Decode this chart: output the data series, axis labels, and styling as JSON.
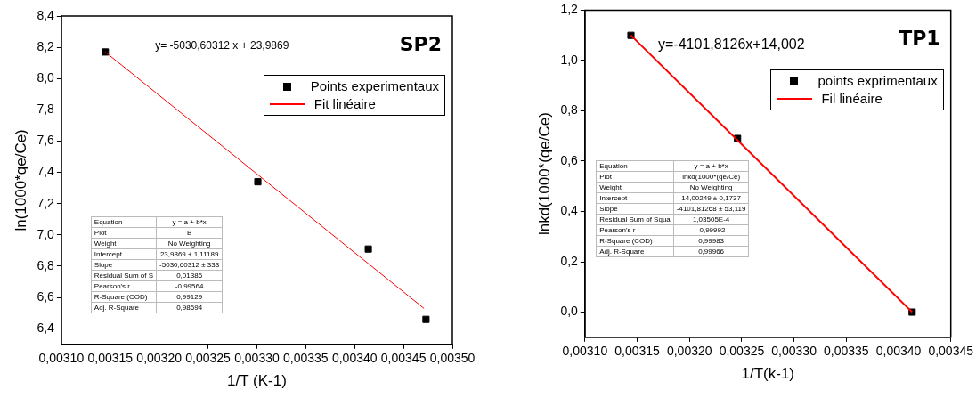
{
  "chart_data": [
    {
      "type": "scatter",
      "title": "SP2",
      "xlabel": "1/T (K-1)",
      "ylabel": "ln(1000*qe/Ce)",
      "legend": "top right",
      "grid": false,
      "xlim": [
        0.0031,
        0.0035
      ],
      "xticks": [
        {
          "value": 0.0031,
          "label": "0,00310"
        },
        {
          "value": 0.00315,
          "label": "0,00315"
        },
        {
          "value": 0.0032,
          "label": "0,00320"
        },
        {
          "value": 0.00325,
          "label": "0,00325"
        },
        {
          "value": 0.0033,
          "label": "0,00330"
        },
        {
          "value": 0.00335,
          "label": "0,00335"
        },
        {
          "value": 0.0034,
          "label": "0,00340"
        },
        {
          "value": 0.00345,
          "label": "0,00345"
        },
        {
          "value": 0.0035,
          "label": "0,00350"
        }
      ],
      "ylim": [
        6.3,
        8.4
      ],
      "yticks": [
        {
          "value": 6.4,
          "label": "6,4"
        },
        {
          "value": 6.6,
          "label": "6,6"
        },
        {
          "value": 6.8,
          "label": "6,8"
        },
        {
          "value": 7.0,
          "label": "7,0"
        },
        {
          "value": 7.2,
          "label": "7,2"
        },
        {
          "value": 7.4,
          "label": "7,4"
        },
        {
          "value": 7.6,
          "label": "7,6"
        },
        {
          "value": 7.8,
          "label": "7,8"
        },
        {
          "value": 8.0,
          "label": "8,0"
        },
        {
          "value": 8.2,
          "label": "8,2"
        },
        {
          "value": 8.4,
          "label": "8,4"
        }
      ],
      "series": [
        {
          "name": "Points experimentaux",
          "marker": "square",
          "color": "#000000",
          "x": [
            0.003145,
            0.003301,
            0.003414,
            0.003473
          ],
          "values": [
            8.17,
            7.34,
            6.91,
            6.46
          ]
        },
        {
          "name": "Fit linéaire",
          "type": "line",
          "marker": "none",
          "color": "#ff0000",
          "x": [
            0.003145,
            0.003471
          ],
          "values": [
            8.17,
            6.53
          ]
        }
      ],
      "annotations": [
        "y= -5030,60312 x + 23,9869",
        "Equation",
        "y = a + b*x",
        "Plot",
        "B",
        "Weight",
        "No Weighting",
        "Intercept",
        "23,9869 ± 1,11189",
        "Slope",
        "-5030,60312 ± 333",
        "Residual Sum of S",
        "0,01386",
        "Pearson's r",
        "-0,99564",
        "R-Square (COD)",
        "0,99129",
        "Adj. R-Square",
        "0,98694"
      ]
    },
    {
      "type": "scatter",
      "title": "TP1",
      "xlabel": "1/T(k-1)",
      "ylabel": "lnkd(1000*(qe/Ce)",
      "legend": "top right",
      "grid": false,
      "xlim": [
        0.0031,
        0.00345
      ],
      "xticks": [
        {
          "value": 0.0031,
          "label": "0,00310"
        },
        {
          "value": 0.00315,
          "label": "0,00315"
        },
        {
          "value": 0.0032,
          "label": "0,00320"
        },
        {
          "value": 0.00325,
          "label": "0,00325"
        },
        {
          "value": 0.0033,
          "label": "0,00330"
        },
        {
          "value": 0.00335,
          "label": "0,00335"
        },
        {
          "value": 0.0034,
          "label": "0,00340"
        },
        {
          "value": 0.00345,
          "label": "0,00345"
        }
      ],
      "ylim": [
        -0.1,
        1.2
      ],
      "yticks": [
        {
          "value": 0,
          "label": "0,0"
        },
        {
          "value": 0.2,
          "label": "0,2"
        },
        {
          "value": 0.4,
          "label": "0,4"
        },
        {
          "value": 0.6,
          "label": "0,6"
        },
        {
          "value": 0.8,
          "label": "0,8"
        },
        {
          "value": 1.0,
          "label": "1,0"
        },
        {
          "value": 1.2,
          "label": "1,2"
        }
      ],
      "series": [
        {
          "name": "points exprimentaux",
          "marker": "square",
          "color": "#000000",
          "x": [
            0.003144,
            0.003246,
            0.003413
          ],
          "values": [
            1.1,
            0.69,
            0.0
          ]
        },
        {
          "name": "Fil linéaire",
          "type": "line",
          "marker": "none",
          "color": "#ff0000",
          "x": [
            0.003144,
            0.003413
          ],
          "values": [
            1.1,
            0.0
          ]
        }
      ],
      "annotations": [
        "y=-4101,8126x+14,002",
        "Equation",
        "y = a + b*x",
        "Plot",
        "lnkd(1000*(qe/Ce)",
        "Weight",
        "No Weighting",
        "Intercept",
        "14,00249 ± 0,1737",
        "Slope",
        "-4101,81268 ± 53,119",
        "Residual Sum of Squa",
        "1,03505E-4",
        "Pearson's r",
        "-0,99992",
        "R-Square (COD)",
        "0,99983",
        "Adj. R-Square",
        "0,99966"
      ]
    }
  ]
}
